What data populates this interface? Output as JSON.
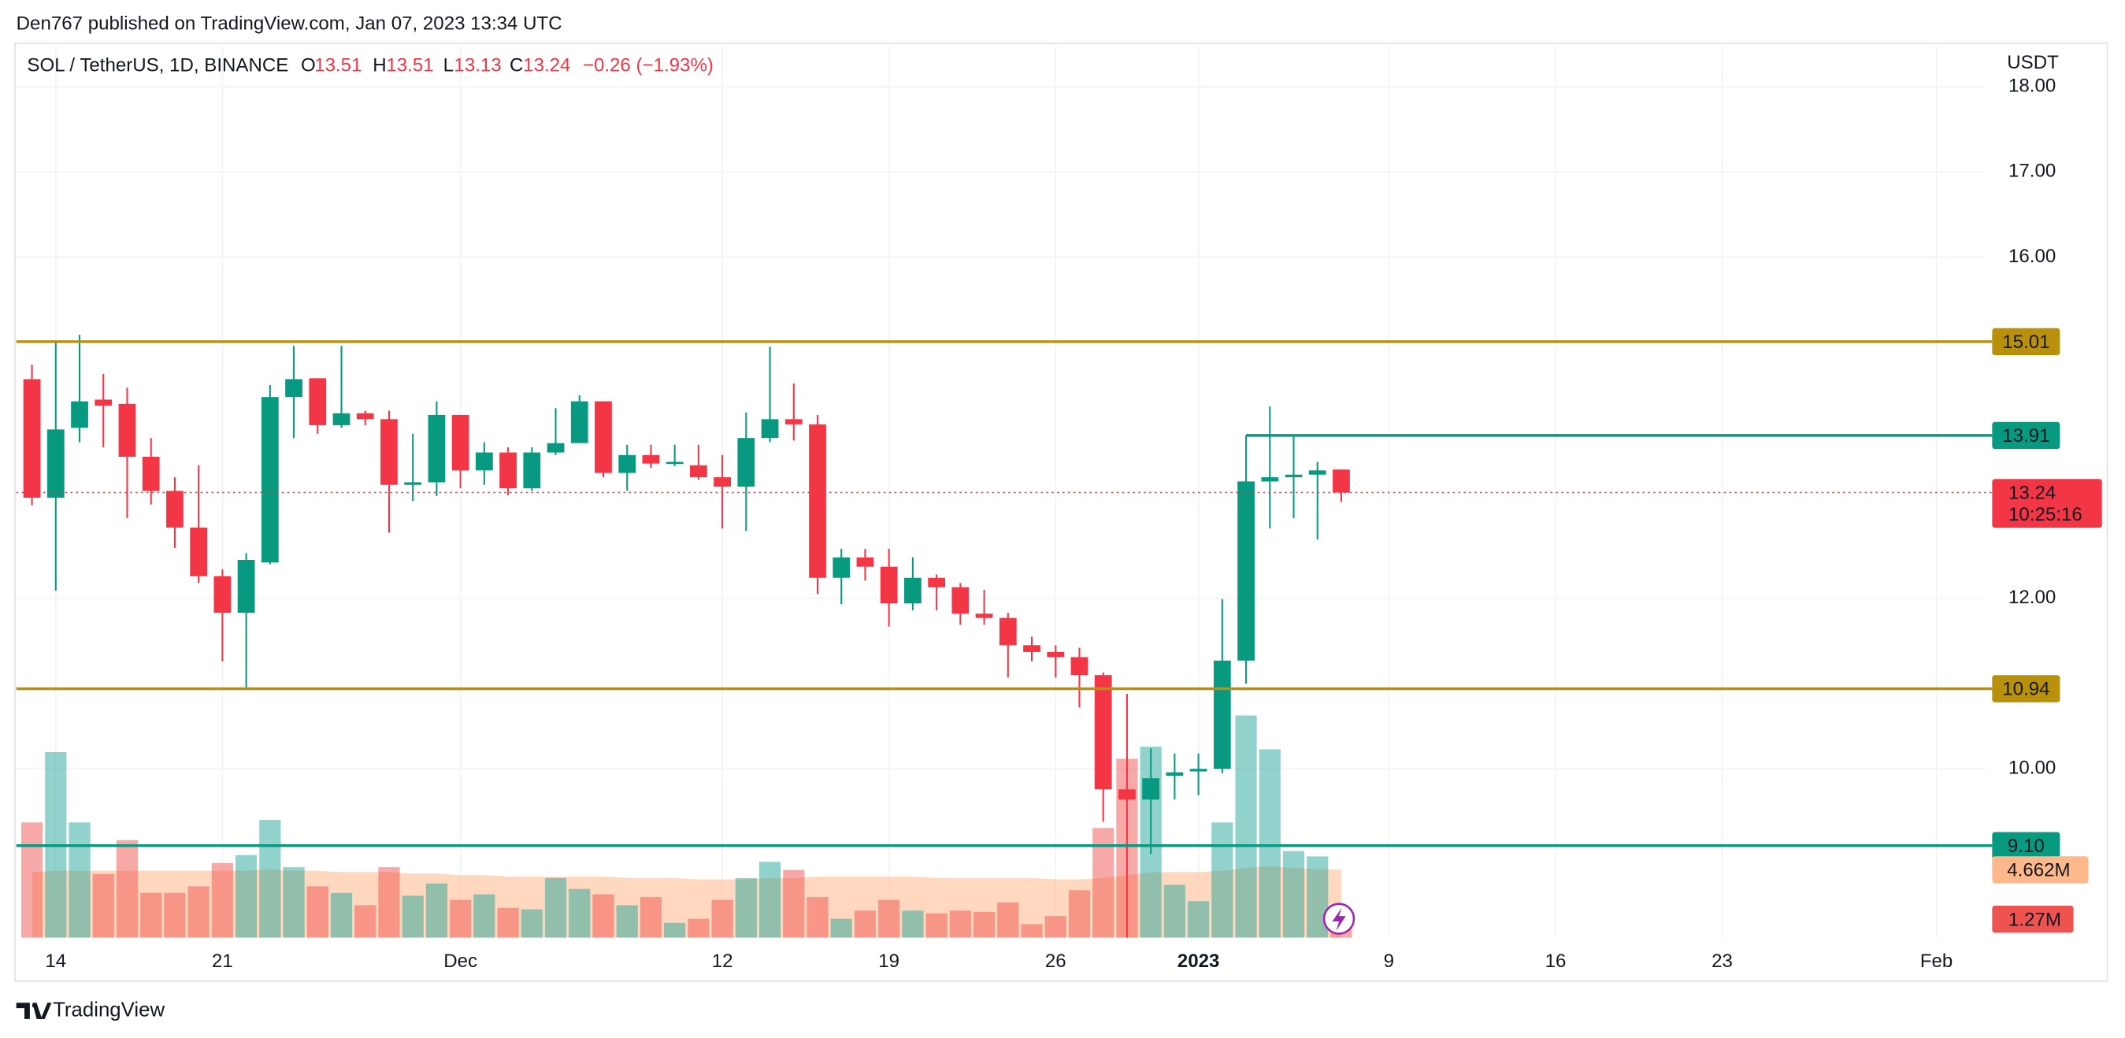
{
  "header": "Den767 published on TradingView.com, Jan 07, 2023 13:34 UTC",
  "footer": "TradingView",
  "chart_data": {
    "type": "candlestick",
    "title": "SOL / TetherUS, 1D, BINANCE",
    "ohlc_letters": [
      "O",
      "H",
      "L",
      "C"
    ],
    "change": "−0.26 (−1.93%)",
    "currency": "USDT",
    "countdown": "10:25:16",
    "up_color": "#089981",
    "down_color": "#f23645",
    "x": [
      "2022-11-13",
      "2022-11-14",
      "2022-11-15",
      "2022-11-16",
      "2022-11-17",
      "2022-11-18",
      "2022-11-19",
      "2022-11-20",
      "2022-11-21",
      "2022-11-22",
      "2022-11-23",
      "2022-11-24",
      "2022-11-25",
      "2022-11-26",
      "2022-11-27",
      "2022-11-28",
      "2022-11-29",
      "2022-11-30",
      "2022-12-01",
      "2022-12-02",
      "2022-12-03",
      "2022-12-04",
      "2022-12-05",
      "2022-12-06",
      "2022-12-07",
      "2022-12-08",
      "2022-12-09",
      "2022-12-10",
      "2022-12-11",
      "2022-12-12",
      "2022-12-13",
      "2022-12-14",
      "2022-12-15",
      "2022-12-16",
      "2022-12-17",
      "2022-12-18",
      "2022-12-19",
      "2022-12-20",
      "2022-12-21",
      "2022-12-22",
      "2022-12-23",
      "2022-12-24",
      "2022-12-25",
      "2022-12-26",
      "2022-12-27",
      "2022-12-28",
      "2022-12-29",
      "2022-12-30",
      "2022-12-31",
      "2023-01-01",
      "2023-01-02",
      "2023-01-03",
      "2023-01-04",
      "2023-01-05",
      "2023-01-06",
      "2023-01-07"
    ],
    "open": [
      14.57,
      13.18,
      14.0,
      14.33,
      14.28,
      13.66,
      13.26,
      12.83,
      12.26,
      11.83,
      12.42,
      14.36,
      14.58,
      14.03,
      14.17,
      14.1,
      13.33,
      13.36,
      14.15,
      13.5,
      13.71,
      13.29,
      13.71,
      13.82,
      14.31,
      13.47,
      13.68,
      13.58,
      13.56,
      13.42,
      13.31,
      13.88,
      14.1,
      14.04,
      12.24,
      12.48,
      12.37,
      11.94,
      12.24,
      12.13,
      11.82,
      11.77,
      11.45,
      11.37,
      11.31,
      11.1,
      9.76,
      9.64,
      9.92,
      9.97,
      10.0,
      11.27,
      13.37,
      13.42,
      13.45,
      13.51
    ],
    "high": [
      14.74,
      15.0,
      15.09,
      14.63,
      14.47,
      13.88,
      13.42,
      13.56,
      12.34,
      12.53,
      14.5,
      14.96,
      14.58,
      14.96,
      14.2,
      14.2,
      13.93,
      14.31,
      14.15,
      13.83,
      13.77,
      13.77,
      14.23,
      14.38,
      14.31,
      13.8,
      13.8,
      13.8,
      13.8,
      13.68,
      14.18,
      14.95,
      14.52,
      14.15,
      12.58,
      12.58,
      12.58,
      12.48,
      12.28,
      12.18,
      12.1,
      11.83,
      11.55,
      11.45,
      11.42,
      11.13,
      10.88,
      10.24,
      10.18,
      10.18,
      11.99,
      13.91,
      14.25,
      13.9,
      13.6,
      13.51
    ],
    "low": [
      13.09,
      12.09,
      13.83,
      13.77,
      12.94,
      13.1,
      12.59,
      12.18,
      11.26,
      10.94,
      12.4,
      13.88,
      13.93,
      14.0,
      14.03,
      12.77,
      13.14,
      13.2,
      13.29,
      13.33,
      13.21,
      13.26,
      13.68,
      13.82,
      13.42,
      13.26,
      13.53,
      13.55,
      13.39,
      12.82,
      12.79,
      13.83,
      13.85,
      12.05,
      11.93,
      12.21,
      11.67,
      11.86,
      11.86,
      11.69,
      11.69,
      11.07,
      11.26,
      11.07,
      10.72,
      9.38,
      8.0,
      9.0,
      9.64,
      9.69,
      9.95,
      11.0,
      12.82,
      12.94,
      12.69,
      13.13
    ],
    "close": [
      13.18,
      13.98,
      14.31,
      14.26,
      13.66,
      13.26,
      12.83,
      12.26,
      11.83,
      12.45,
      14.36,
      14.57,
      14.03,
      14.17,
      14.1,
      13.33,
      13.36,
      14.15,
      13.5,
      13.71,
      13.29,
      13.71,
      13.82,
      14.31,
      13.47,
      13.68,
      13.58,
      13.6,
      13.42,
      13.31,
      13.88,
      14.1,
      14.04,
      12.24,
      12.48,
      12.37,
      11.94,
      12.24,
      12.13,
      11.82,
      11.77,
      11.45,
      11.37,
      11.31,
      11.1,
      9.76,
      9.64,
      9.89,
      9.96,
      10.0,
      11.27,
      13.37,
      13.42,
      13.45,
      13.5,
      13.24
    ],
    "volume": {
      "up_color": "#26a69a",
      "down_color": "#ef5350",
      "last_label": "1.27M",
      "values": [
        7.91,
        12.74,
        7.91,
        4.37,
        6.7,
        3.07,
        3.07,
        3.53,
        5.12,
        5.67,
        8.09,
        4.84,
        3.53,
        3.07,
        2.23,
        4.84,
        2.88,
        3.72,
        2.6,
        2.98,
        2.05,
        1.95,
        4.09,
        3.35,
        2.98,
        2.23,
        2.79,
        1.02,
        1.3,
        2.6,
        4.09,
        5.21,
        4.65,
        2.79,
        1.3,
        1.86,
        2.6,
        1.86,
        1.67,
        1.86,
        1.77,
        2.42,
        0.93,
        1.49,
        3.26,
        7.53,
        12.28,
        13.11,
        3.63,
        2.51,
        7.91,
        15.25,
        12.93,
        5.95,
        5.58,
        1.27
      ]
    },
    "volume_ma": {
      "color": "#ffb88a",
      "last_label": "4.662M",
      "values": [
        4.5,
        4.6,
        4.6,
        4.6,
        4.6,
        4.6,
        4.6,
        4.6,
        4.6,
        4.6,
        4.7,
        4.6,
        4.6,
        4.5,
        4.5,
        4.5,
        4.4,
        4.4,
        4.3,
        4.3,
        4.2,
        4.2,
        4.2,
        4.2,
        4.2,
        4.1,
        4.1,
        4.1,
        4.0,
        4.0,
        4.0,
        4.1,
        4.1,
        4.2,
        4.2,
        4.2,
        4.2,
        4.2,
        4.1,
        4.1,
        4.1,
        4.1,
        4.1,
        4.0,
        4.0,
        4.1,
        4.3,
        4.5,
        4.5,
        4.5,
        4.6,
        4.8,
        4.9,
        4.8,
        4.7,
        4.662
      ]
    },
    "levels": [
      {
        "value": 15.01,
        "color": "#b8900b"
      },
      {
        "value": 13.91,
        "color": "#089981",
        "from": "2023-01-03"
      },
      {
        "value": 10.94,
        "color": "#b8900b"
      },
      {
        "value": 9.1,
        "label": "9.10",
        "color": "#089981"
      }
    ],
    "xlim": [
      "2022-11-12",
      "2023-02-03"
    ],
    "xticks": [
      {
        "value": "2022-11-14",
        "label": "14"
      },
      {
        "value": "2022-11-21",
        "label": "21"
      },
      {
        "value": "2022-12-01",
        "label": "Dec"
      },
      {
        "value": "2022-12-12",
        "label": "12"
      },
      {
        "value": "2022-12-19",
        "label": "19"
      },
      {
        "value": "2022-12-26",
        "label": "26"
      },
      {
        "value": "2023-01-01",
        "label": "2023"
      },
      {
        "value": "2023-01-09",
        "label": "9"
      },
      {
        "value": "2023-01-16",
        "label": "16"
      },
      {
        "value": "2023-01-23",
        "label": "23"
      },
      {
        "value": "2023-02-01",
        "label": "Feb"
      }
    ],
    "ylim": [
      8.02,
      18.46
    ],
    "yticks": [
      {
        "value": 10,
        "label": "10.00"
      },
      {
        "value": 12,
        "label": "12.00"
      },
      {
        "value": 16,
        "label": "16.00"
      },
      {
        "value": 17,
        "label": "17.00"
      },
      {
        "value": 18,
        "label": "18.00"
      }
    ],
    "y2lim": [
      0,
      61.1
    ],
    "grid": true
  }
}
